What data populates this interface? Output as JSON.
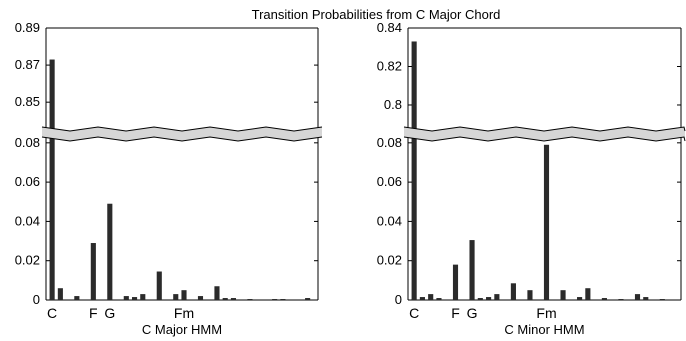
{
  "figure": {
    "title": "Transition Probabilities from C Major Chord"
  },
  "chart_data": [
    {
      "type": "bar",
      "xlabel": "C Major HMM",
      "ylabel": "",
      "x_tick_labels": [
        {
          "index": 0,
          "label": "C"
        },
        {
          "index": 5,
          "label": "F"
        },
        {
          "index": 7,
          "label": "G"
        },
        {
          "index": 16,
          "label": "Fm"
        }
      ],
      "upper_yticks": [
        "0.89",
        "0.87",
        "0.85"
      ],
      "lower_yticks": [
        "0.08",
        "0.06",
        "0.04",
        "0.02",
        "0"
      ],
      "upper_ylim": [
        0.835,
        0.89
      ],
      "lower_ylim": [
        0,
        0.085
      ],
      "axis_break": true,
      "grid": false,
      "values": [
        0.873,
        0.006,
        0.0,
        0.002,
        0.0,
        0.029,
        0.0,
        0.049,
        0.0,
        0.002,
        0.0015,
        0.003,
        0.0,
        0.0145,
        0.0,
        0.003,
        0.005,
        0.0,
        0.002,
        0.0,
        0.007,
        0.001,
        0.001,
        0.0,
        0.0005,
        0.0,
        0.0,
        0.0005,
        0.0005,
        0.0,
        0.0,
        0.001,
        0.0
      ]
    },
    {
      "type": "bar",
      "xlabel": "C Minor HMM",
      "ylabel": "",
      "x_tick_labels": [
        {
          "index": 0,
          "label": "C"
        },
        {
          "index": 5,
          "label": "F"
        },
        {
          "index": 7,
          "label": "G"
        },
        {
          "index": 16,
          "label": "Fm"
        }
      ],
      "upper_yticks": [
        "0.84",
        "0.82",
        "0.8"
      ],
      "lower_yticks": [
        "0.08",
        "0.06",
        "0.04",
        "0.02",
        "0"
      ],
      "upper_ylim": [
        0.787,
        0.84
      ],
      "lower_ylim": [
        0,
        0.085
      ],
      "axis_break": true,
      "grid": false,
      "values": [
        0.833,
        0.0015,
        0.003,
        0.001,
        0.0,
        0.018,
        0.0,
        0.0305,
        0.001,
        0.0015,
        0.003,
        0.0,
        0.0085,
        0.0,
        0.005,
        0.0,
        0.079,
        0.0,
        0.005,
        0.0,
        0.0015,
        0.006,
        0.0,
        0.001,
        0.0,
        0.0005,
        0.0,
        0.003,
        0.0015,
        0.0,
        0.0005,
        0.0,
        0.0
      ]
    }
  ]
}
